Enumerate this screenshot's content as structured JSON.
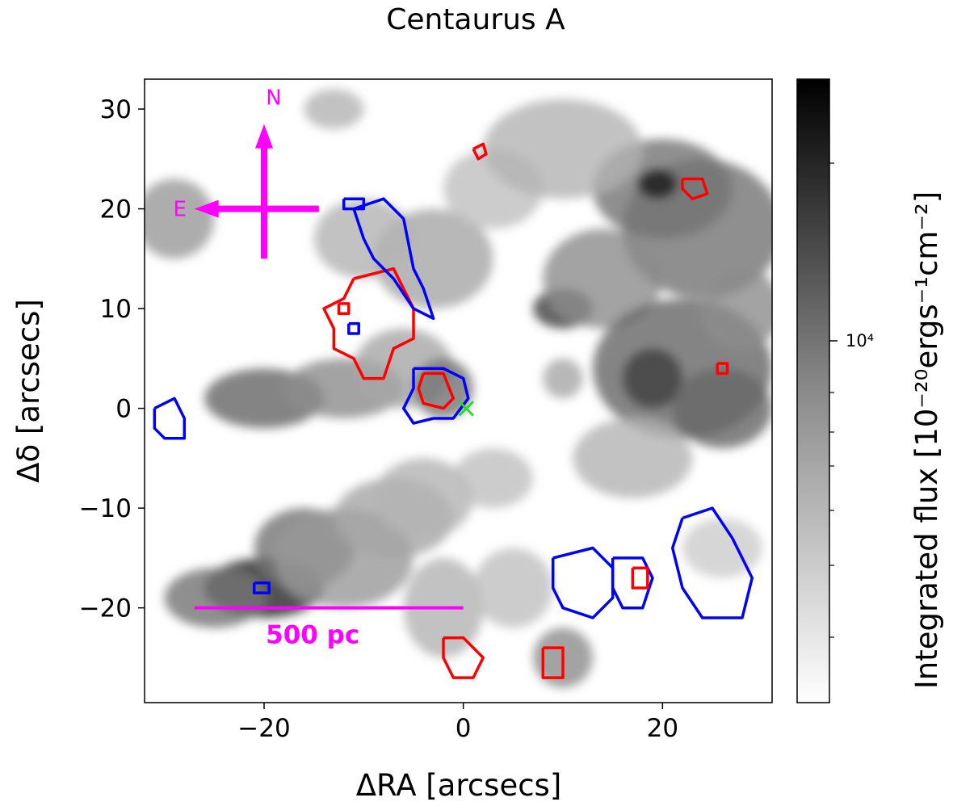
{
  "chart_data": {
    "type": "heatmap",
    "title": "Centaurus A",
    "xlabel": "ΔRA [arcsecs]",
    "ylabel": "Δδ [arcsecs]",
    "xlim": [
      -32,
      31
    ],
    "ylim": [
      -29.5,
      33
    ],
    "x_ticks": [
      -20,
      0,
      20
    ],
    "x_tick_labels": [
      "−20",
      "0",
      "20"
    ],
    "y_ticks": [
      30,
      20,
      10,
      0,
      -10,
      -20
    ],
    "y_tick_labels": [
      "30",
      "20",
      "10",
      "0",
      "−10",
      "−20"
    ],
    "grid": false,
    "colormap": "grey (white = low, black = high)",
    "colorbar": {
      "label": "Integrated flux [10⁻²⁰ergs⁻¹cm⁻²]",
      "scale": "log",
      "major_tick_label": "10⁴"
    },
    "contour_colors": {
      "red": "#ff0000",
      "blue": "#0000ff"
    },
    "nucleus_marker": {
      "x": 0.3,
      "y": 0,
      "symbol": "×",
      "color": "#22dd22"
    },
    "compass": {
      "north_label": "N",
      "east_label": "E",
      "center": [
        -20,
        20
      ],
      "color": "#ff00ff"
    },
    "scale_bar": {
      "label": "500 pc",
      "x_start": -27,
      "x_end": 0,
      "y": -20,
      "color": "#ff00ff"
    },
    "emission_blobs": [
      {
        "x": 20,
        "y": 22,
        "rx": 7,
        "ry": 5,
        "v": 0.55
      },
      {
        "x": 24,
        "y": 18,
        "rx": 8,
        "ry": 7,
        "v": 0.55
      },
      {
        "x": 19.5,
        "y": 22.5,
        "rx": 2,
        "ry": 1.5,
        "v": 0.9
      },
      {
        "x": 10,
        "y": 10,
        "rx": 3,
        "ry": 2,
        "v": 0.75
      },
      {
        "x": 14,
        "y": 13,
        "rx": 6,
        "ry": 5,
        "v": 0.45
      },
      {
        "x": 22,
        "y": 4,
        "rx": 9,
        "ry": 7,
        "v": 0.6
      },
      {
        "x": 19,
        "y": 3,
        "rx": 3,
        "ry": 3,
        "v": 0.75
      },
      {
        "x": 26,
        "y": 0,
        "rx": 5,
        "ry": 4,
        "v": 0.6
      },
      {
        "x": 28,
        "y": 10,
        "rx": 4,
        "ry": 4,
        "v": 0.45
      },
      {
        "x": -29,
        "y": 19,
        "rx": 4,
        "ry": 4,
        "v": 0.4
      },
      {
        "x": -20,
        "y": 1,
        "rx": 6,
        "ry": 3,
        "v": 0.6
      },
      {
        "x": -12,
        "y": 2,
        "rx": 6,
        "ry": 3,
        "v": 0.45
      },
      {
        "x": -6,
        "y": 4,
        "rx": 5,
        "ry": 4,
        "v": 0.35
      },
      {
        "x": -2,
        "y": 2,
        "rx": 3,
        "ry": 3,
        "v": 0.55
      },
      {
        "x": -3,
        "y": 15,
        "rx": 6,
        "ry": 5,
        "v": 0.35
      },
      {
        "x": -10,
        "y": 17,
        "rx": 5,
        "ry": 4,
        "v": 0.3
      },
      {
        "x": 3,
        "y": 22,
        "rx": 5,
        "ry": 4,
        "v": 0.25
      },
      {
        "x": -13,
        "y": 30,
        "rx": 3,
        "ry": 2,
        "v": 0.3
      },
      {
        "x": 10,
        "y": 26,
        "rx": 8,
        "ry": 5,
        "v": 0.3
      },
      {
        "x": -20,
        "y": -18,
        "rx": 6,
        "ry": 3,
        "v": 0.85
      },
      {
        "x": -16,
        "y": -14,
        "rx": 5,
        "ry": 4,
        "v": 0.55
      },
      {
        "x": -25,
        "y": -19,
        "rx": 5,
        "ry": 3,
        "v": 0.55
      },
      {
        "x": -12,
        "y": -15,
        "rx": 7,
        "ry": 5,
        "v": 0.4
      },
      {
        "x": -7,
        "y": -11,
        "rx": 6,
        "ry": 4,
        "v": 0.35
      },
      {
        "x": -4,
        "y": -9,
        "rx": 5,
        "ry": 4,
        "v": 0.3
      },
      {
        "x": -2,
        "y": -20,
        "rx": 4,
        "ry": 5,
        "v": 0.3
      },
      {
        "x": 5,
        "y": -18,
        "rx": 4,
        "ry": 4,
        "v": 0.25
      },
      {
        "x": 10,
        "y": -25,
        "rx": 3,
        "ry": 3,
        "v": 0.45
      },
      {
        "x": 3,
        "y": -7,
        "rx": 4,
        "ry": 3,
        "v": 0.25
      },
      {
        "x": 17,
        "y": -5,
        "rx": 6,
        "ry": 4,
        "v": 0.3
      },
      {
        "x": 26,
        "y": -14,
        "rx": 4,
        "ry": 3,
        "v": 0.2
      },
      {
        "x": 10,
        "y": 3,
        "rx": 2,
        "ry": 2,
        "v": 0.35
      }
    ],
    "contours": [
      {
        "color": "red",
        "points": [
          [
            -11,
            13
          ],
          [
            -7,
            14
          ],
          [
            -5,
            10
          ],
          [
            -5,
            7
          ],
          [
            -7,
            6
          ],
          [
            -8,
            3
          ],
          [
            -10,
            3
          ],
          [
            -11,
            5
          ],
          [
            -13,
            6
          ],
          [
            -13,
            8
          ],
          [
            -14,
            10
          ],
          [
            -12,
            11
          ],
          [
            -11,
            13
          ]
        ]
      },
      {
        "color": "blue",
        "points": [
          [
            -11,
            20
          ],
          [
            -8,
            21
          ],
          [
            -6,
            19
          ],
          [
            -5,
            14
          ],
          [
            -4,
            12
          ],
          [
            -3,
            9
          ],
          [
            -5,
            10
          ],
          [
            -7,
            13
          ],
          [
            -9,
            15
          ],
          [
            -10,
            17
          ],
          [
            -11,
            20
          ]
        ]
      },
      {
        "color": "blue",
        "points": [
          [
            -12,
            21
          ],
          [
            -10,
            21
          ],
          [
            -10,
            20
          ],
          [
            -12,
            20
          ],
          [
            -12,
            21
          ]
        ]
      },
      {
        "color": "blue",
        "points": [
          [
            -11.5,
            8.5
          ],
          [
            -10.5,
            8.5
          ],
          [
            -10.5,
            7.5
          ],
          [
            -11.5,
            7.5
          ],
          [
            -11.5,
            8.5
          ]
        ]
      },
      {
        "color": "red",
        "points": [
          [
            -12.5,
            10.5
          ],
          [
            -11.5,
            10.5
          ],
          [
            -11.5,
            9.5
          ],
          [
            -12.5,
            9.5
          ],
          [
            -12.5,
            10.5
          ]
        ]
      },
      {
        "color": "blue",
        "points": [
          [
            -5,
            4
          ],
          [
            -2,
            4
          ],
          [
            0,
            3
          ],
          [
            0.5,
            1
          ],
          [
            -1,
            -1
          ],
          [
            -3,
            -1
          ],
          [
            -5,
            -1.5
          ],
          [
            -6,
            0
          ],
          [
            -5,
            2
          ],
          [
            -5,
            4
          ]
        ]
      },
      {
        "color": "red",
        "points": [
          [
            -4,
            3.5
          ],
          [
            -2,
            3.5
          ],
          [
            -1,
            1
          ],
          [
            -2,
            0
          ],
          [
            -4,
            0.5
          ],
          [
            -4.5,
            2
          ],
          [
            -4,
            3.5
          ]
        ]
      },
      {
        "color": "blue",
        "points": [
          [
            -31,
            0
          ],
          [
            -29,
            1
          ],
          [
            -28,
            -1
          ],
          [
            -28,
            -3
          ],
          [
            -30,
            -3
          ],
          [
            -31,
            -2
          ],
          [
            -31,
            0
          ]
        ]
      },
      {
        "color": "blue",
        "points": [
          [
            9,
            -15
          ],
          [
            13,
            -14
          ],
          [
            15,
            -16
          ],
          [
            15,
            -19
          ],
          [
            13,
            -21
          ],
          [
            10,
            -20
          ],
          [
            9,
            -18
          ],
          [
            9,
            -15
          ]
        ]
      },
      {
        "color": "blue",
        "points": [
          [
            15,
            -15
          ],
          [
            18,
            -15
          ],
          [
            19,
            -17
          ],
          [
            18,
            -20
          ],
          [
            16,
            -20
          ],
          [
            15,
            -18
          ],
          [
            15,
            -15
          ]
        ]
      },
      {
        "color": "blue",
        "points": [
          [
            22,
            -11
          ],
          [
            25,
            -10
          ],
          [
            27,
            -13
          ],
          [
            29,
            -17
          ],
          [
            28,
            -21
          ],
          [
            24,
            -21
          ],
          [
            22,
            -18
          ],
          [
            21,
            -14
          ],
          [
            22,
            -11
          ]
        ]
      },
      {
        "color": "red",
        "points": [
          [
            17,
            -16
          ],
          [
            18.5,
            -16
          ],
          [
            18.5,
            -18
          ],
          [
            17,
            -18
          ],
          [
            17,
            -16
          ]
        ]
      },
      {
        "color": "red",
        "points": [
          [
            -2,
            -23
          ],
          [
            0,
            -23
          ],
          [
            2,
            -25
          ],
          [
            1,
            -27
          ],
          [
            -1,
            -27
          ],
          [
            -2,
            -25
          ],
          [
            -2,
            -23
          ]
        ]
      },
      {
        "color": "red",
        "points": [
          [
            8,
            -24
          ],
          [
            10,
            -24
          ],
          [
            10,
            -27
          ],
          [
            8,
            -27
          ],
          [
            8,
            -24
          ]
        ]
      },
      {
        "color": "red",
        "points": [
          [
            22,
            23
          ],
          [
            24,
            23
          ],
          [
            24.5,
            21.5
          ],
          [
            23,
            21
          ],
          [
            22,
            22
          ],
          [
            22,
            23
          ]
        ]
      },
      {
        "color": "red",
        "points": [
          [
            25.5,
            4.5
          ],
          [
            26.5,
            4.5
          ],
          [
            26.5,
            3.5
          ],
          [
            25.5,
            3.5
          ],
          [
            25.5,
            4.5
          ]
        ]
      },
      {
        "color": "red",
        "points": [
          [
            1,
            26
          ],
          [
            2,
            26.5
          ],
          [
            2.3,
            25.5
          ],
          [
            1.5,
            25
          ],
          [
            1,
            26
          ]
        ]
      },
      {
        "color": "blue",
        "points": [
          [
            -21,
            -17.5
          ],
          [
            -19.5,
            -17.5
          ],
          [
            -19.5,
            -18.5
          ],
          [
            -21,
            -18.5
          ],
          [
            -21,
            -17.5
          ]
        ]
      }
    ]
  }
}
